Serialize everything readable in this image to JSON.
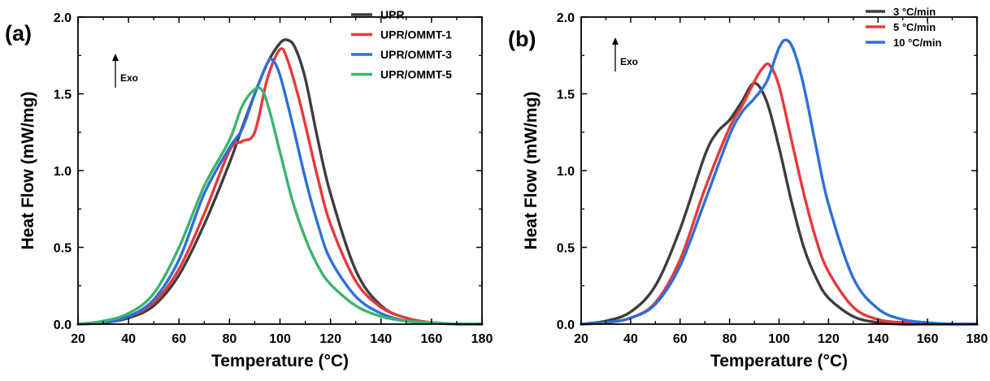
{
  "chart_data": [
    {
      "type": "line",
      "panel_label": "(a)",
      "xlabel": "Temperature (°C)",
      "ylabel": "Heat Flow (mW/mg)",
      "xlim": [
        20,
        180
      ],
      "ylim": [
        0,
        2.0
      ],
      "x_ticks": [
        20,
        40,
        60,
        80,
        100,
        120,
        140,
        160,
        180
      ],
      "y_ticks": [
        0.0,
        0.5,
        1.0,
        1.5,
        2.0
      ],
      "annotation": "Exo",
      "legend_position": "top-right",
      "grid": false,
      "series": [
        {
          "name": "UPR",
          "color": "#3d3d3d",
          "x": [
            20,
            30,
            40,
            50,
            60,
            70,
            80,
            85,
            90,
            95,
            100,
            103,
            106,
            110,
            115,
            120,
            130,
            140,
            150,
            160,
            170,
            180
          ],
          "y": [
            0.0,
            0.01,
            0.04,
            0.12,
            0.32,
            0.65,
            1.05,
            1.28,
            1.5,
            1.7,
            1.83,
            1.85,
            1.8,
            1.6,
            1.2,
            0.85,
            0.35,
            0.12,
            0.04,
            0.01,
            0.0,
            0.0
          ]
        },
        {
          "name": "UPR/OMMT-1",
          "color": "#e8393a",
          "x": [
            20,
            30,
            40,
            50,
            60,
            70,
            80,
            85,
            90,
            95,
            100,
            103,
            107,
            110,
            115,
            120,
            130,
            140,
            150,
            160,
            170,
            180
          ],
          "y": [
            0.0,
            0.01,
            0.05,
            0.14,
            0.36,
            0.72,
            1.13,
            1.19,
            1.25,
            1.6,
            1.79,
            1.72,
            1.5,
            1.3,
            0.95,
            0.65,
            0.28,
            0.11,
            0.04,
            0.01,
            0.0,
            0.0
          ]
        },
        {
          "name": "UPR/OMMT-3",
          "color": "#2e6fd9",
          "x": [
            20,
            30,
            40,
            50,
            60,
            70,
            80,
            85,
            90,
            95,
            97,
            100,
            105,
            110,
            115,
            120,
            130,
            140,
            150,
            160,
            170,
            180
          ],
          "y": [
            0.0,
            0.01,
            0.05,
            0.16,
            0.42,
            0.85,
            1.15,
            1.27,
            1.5,
            1.7,
            1.72,
            1.62,
            1.3,
            0.95,
            0.65,
            0.42,
            0.18,
            0.07,
            0.02,
            0.01,
            0.0,
            0.0
          ]
        },
        {
          "name": "UPR/OMMT-5",
          "color": "#3db46d",
          "x": [
            20,
            30,
            40,
            50,
            60,
            70,
            80,
            85,
            90,
            93,
            96,
            100,
            105,
            110,
            115,
            120,
            130,
            140,
            150,
            160,
            170,
            180
          ],
          "y": [
            0.0,
            0.02,
            0.07,
            0.2,
            0.5,
            0.9,
            1.2,
            1.42,
            1.53,
            1.52,
            1.38,
            1.12,
            0.8,
            0.56,
            0.38,
            0.26,
            0.12,
            0.05,
            0.02,
            0.01,
            0.0,
            0.0
          ]
        }
      ]
    },
    {
      "type": "line",
      "panel_label": "(b)",
      "xlabel": "Temperature (°C)",
      "ylabel": "Heat Flow (mW/mg)",
      "xlim": [
        20,
        180
      ],
      "ylim": [
        0,
        2.0
      ],
      "x_ticks": [
        20,
        40,
        60,
        80,
        100,
        120,
        140,
        160,
        180
      ],
      "y_ticks": [
        0.0,
        0.5,
        1.0,
        1.5,
        2.0
      ],
      "annotation": "Exo",
      "legend_position": "top-right",
      "grid": false,
      "series": [
        {
          "name": "3 °C/min",
          "color": "#3d3d3d",
          "x": [
            20,
            30,
            40,
            50,
            60,
            70,
            75,
            80,
            85,
            90,
            95,
            100,
            105,
            110,
            115,
            120,
            130,
            140,
            150,
            160,
            170,
            180
          ],
          "y": [
            0.0,
            0.02,
            0.08,
            0.25,
            0.62,
            1.1,
            1.25,
            1.33,
            1.45,
            1.57,
            1.45,
            1.15,
            0.8,
            0.5,
            0.3,
            0.17,
            0.05,
            0.01,
            0.0,
            0.0,
            0.0,
            0.0
          ]
        },
        {
          "name": "5 °C/min",
          "color": "#e8393a",
          "x": [
            20,
            30,
            40,
            50,
            60,
            70,
            80,
            85,
            90,
            93,
            96,
            100,
            105,
            110,
            115,
            120,
            130,
            140,
            150,
            160,
            170,
            180
          ],
          "y": [
            0.0,
            0.01,
            0.04,
            0.14,
            0.42,
            0.88,
            1.28,
            1.42,
            1.58,
            1.66,
            1.69,
            1.55,
            1.2,
            0.85,
            0.55,
            0.34,
            0.11,
            0.03,
            0.01,
            0.0,
            0.0,
            0.0
          ]
        },
        {
          "name": "10 °C/min",
          "color": "#2e6fd9",
          "x": [
            20,
            30,
            40,
            50,
            60,
            70,
            80,
            85,
            90,
            95,
            100,
            103,
            106,
            110,
            115,
            120,
            130,
            140,
            150,
            160,
            170,
            180
          ],
          "y": [
            0.0,
            0.01,
            0.04,
            0.13,
            0.38,
            0.8,
            1.23,
            1.38,
            1.47,
            1.58,
            1.8,
            1.85,
            1.78,
            1.55,
            1.15,
            0.78,
            0.3,
            0.1,
            0.03,
            0.01,
            0.0,
            0.0
          ]
        }
      ]
    }
  ]
}
